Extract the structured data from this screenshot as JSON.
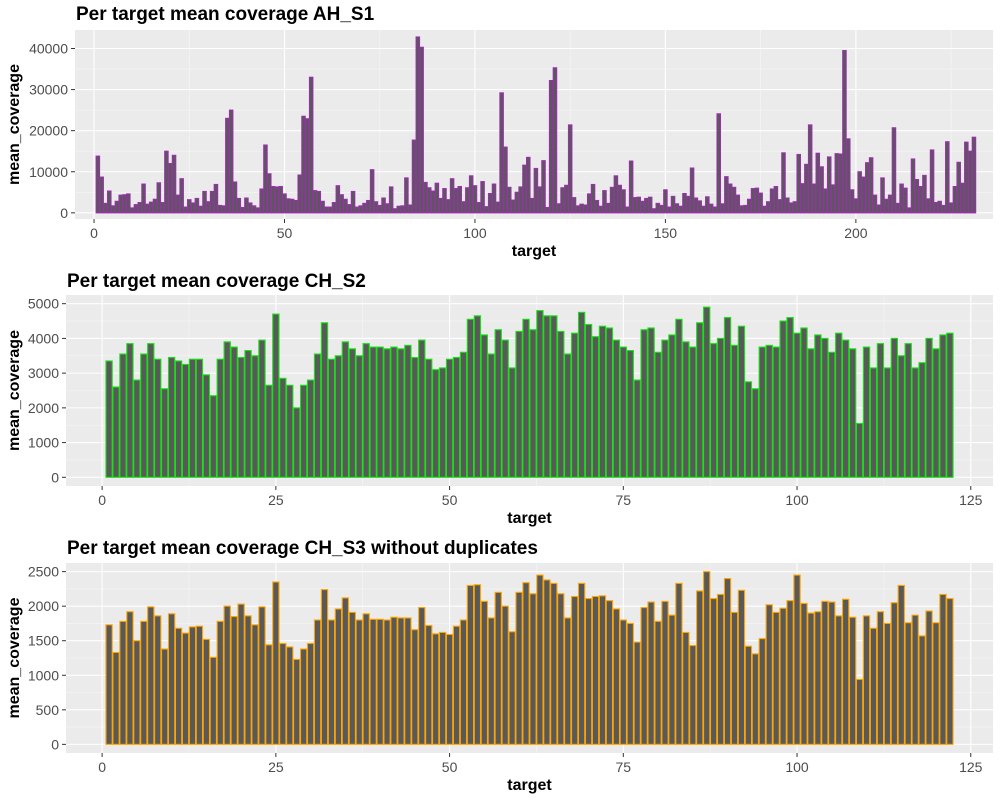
{
  "chart_data": [
    {
      "type": "bar",
      "title": "Per target mean coverage AH_S1",
      "xlabel": "target",
      "ylabel": "mean_coverage",
      "xlim": [
        -5,
        236
      ],
      "ylim": [
        -1500,
        44500
      ],
      "xticks": [
        0,
        50,
        100,
        150,
        200
      ],
      "yticks": [
        0,
        10000,
        20000,
        30000,
        40000
      ],
      "grid": true,
      "legend": "none",
      "colors": {
        "fill": "#595959",
        "outline": "#9b2fae"
      },
      "x_start": 1,
      "values": [
        13800,
        8700,
        2300,
        5300,
        1700,
        2800,
        4300,
        4400,
        4600,
        1200,
        2000,
        2500,
        7000,
        2100,
        2600,
        3300,
        7300,
        2500,
        15000,
        12000,
        14000,
        4300,
        8300,
        1400,
        3200,
        2400,
        3500,
        1600,
        5200,
        2700,
        5200,
        6900,
        1800,
        1700,
        23000,
        25000,
        7500,
        3500,
        1300,
        3600,
        2400,
        1700,
        1200,
        5800,
        16500,
        9500,
        6400,
        6300,
        6400,
        4600,
        3400,
        3300,
        3000,
        9200,
        23500,
        22900,
        33000,
        5400,
        5200,
        2800,
        1400,
        1400,
        2500,
        6600,
        4400,
        3300,
        2000,
        5200,
        1400,
        1700,
        2300,
        3000,
        10500,
        2700,
        1800,
        3600,
        2200,
        6300,
        1000,
        1600,
        1700,
        8500,
        1900,
        17700,
        42800,
        40300,
        7400,
        6100,
        5300,
        7200,
        3500,
        5900,
        3200,
        8300,
        5900,
        6400,
        2700,
        6100,
        9000,
        6600,
        2500,
        7600,
        1500,
        4700,
        7000,
        2600,
        29200,
        16000,
        6200,
        3100,
        5000,
        6300,
        11600,
        13500,
        3500,
        10800,
        6300,
        12700,
        1300,
        32200,
        35300,
        2200,
        6100,
        6700,
        21400,
        3700,
        1700,
        2100,
        1900,
        4600,
        6900,
        3000,
        1600,
        5400,
        2300,
        6200,
        9000,
        6700,
        5600,
        1400,
        12600,
        3700,
        3800,
        2800,
        3500,
        3800,
        1000,
        2300,
        1800,
        5600,
        1400,
        4000,
        2200,
        1600,
        4700,
        4000,
        10900,
        3600,
        2900,
        1600,
        3900,
        2100,
        1400,
        24100,
        2200,
        8800,
        7000,
        6200,
        4300,
        1700,
        1800,
        3300,
        5900,
        6000,
        4800,
        1600,
        2700,
        5800,
        6400,
        3200,
        14600,
        3600,
        2400,
        2700,
        14200,
        7100,
        11800,
        21400,
        7000,
        14500,
        11200,
        5800,
        13600,
        6800,
        14400,
        14300,
        39500,
        18000,
        5600,
        3400,
        10000,
        8700,
        12200,
        13400,
        4300,
        1900,
        8500,
        3300,
        4300,
        20700,
        2300,
        7000,
        6000,
        1200,
        13100,
        8100,
        6400,
        9100,
        3400,
        15300,
        2500,
        2800,
        1800,
        17300,
        2400,
        6400,
        12300,
        7200,
        17200,
        15000,
        18400
      ]
    },
    {
      "type": "bar",
      "title": "Per target mean coverage CH_S2",
      "xlabel": "target",
      "ylabel": "mean_coverage",
      "xlim": [
        -5.2,
        128.2
      ],
      "ylim": [
        -250,
        5250
      ],
      "xticks": [
        0,
        25,
        50,
        75,
        100,
        125
      ],
      "yticks": [
        0,
        1000,
        2000,
        3000,
        4000,
        5000
      ],
      "grid": true,
      "legend": "none",
      "colors": {
        "fill": "#595959",
        "outline": "#16e216"
      },
      "x_start": 1,
      "values": [
        3350,
        2600,
        3550,
        3850,
        2800,
        3550,
        3850,
        3400,
        2550,
        3450,
        3350,
        3250,
        3400,
        3400,
        2950,
        2350,
        3400,
        3900,
        3750,
        3450,
        3650,
        3500,
        3950,
        2650,
        4700,
        2850,
        2650,
        2000,
        2650,
        2800,
        3550,
        4450,
        3400,
        3500,
        3900,
        3700,
        3500,
        3850,
        3750,
        3750,
        3700,
        3750,
        3700,
        3800,
        3450,
        3950,
        3400,
        3100,
        3150,
        3400,
        3450,
        3600,
        4550,
        4650,
        4100,
        3550,
        4250,
        3950,
        3150,
        4200,
        4550,
        4250,
        4800,
        4650,
        4650,
        4200,
        3550,
        4150,
        4750,
        4400,
        4050,
        4350,
        4300,
        3950,
        3750,
        3650,
        2800,
        4250,
        4300,
        3600,
        3950,
        4100,
        4550,
        3900,
        3750,
        4450,
        4900,
        3850,
        4000,
        4600,
        3800,
        4350,
        2750,
        2550,
        3750,
        3800,
        3750,
        4500,
        4600,
        4150,
        4300,
        3700,
        4100,
        4000,
        3600,
        4150,
        3950,
        3700,
        1550,
        3750,
        3150,
        3850,
        3150,
        4000,
        3500,
        3850,
        3150,
        3300,
        4000,
        3700,
        4100,
        4150
      ]
    },
    {
      "type": "bar",
      "title": "Per target mean coverage CH_S3 without duplicates",
      "xlabel": "target",
      "ylabel": "mean_coverage",
      "xlim": [
        -5.2,
        128.2
      ],
      "ylim": [
        -125,
        2625
      ],
      "xticks": [
        0,
        25,
        50,
        75,
        100,
        125
      ],
      "yticks": [
        0,
        500,
        1000,
        1500,
        2000,
        2500
      ],
      "grid": true,
      "legend": "none",
      "colors": {
        "fill": "#595959",
        "outline": "#ffa500"
      },
      "x_start": 1,
      "values": [
        1730,
        1330,
        1780,
        1920,
        1500,
        1780,
        1990,
        1860,
        1380,
        1890,
        1680,
        1610,
        1700,
        1710,
        1520,
        1260,
        1780,
        2000,
        1850,
        2030,
        1860,
        1730,
        1990,
        1440,
        2350,
        1460,
        1410,
        1230,
        1380,
        1460,
        1800,
        2240,
        1800,
        1960,
        2120,
        1910,
        1800,
        1890,
        1810,
        1810,
        1800,
        1840,
        1830,
        1830,
        1660,
        1980,
        1720,
        1600,
        1620,
        1590,
        1710,
        1800,
        2300,
        2310,
        2070,
        1830,
        2200,
        2000,
        1630,
        2200,
        2340,
        2180,
        2450,
        2380,
        2330,
        2180,
        1830,
        2140,
        2330,
        2110,
        2140,
        2150,
        2080,
        1960,
        1800,
        1750,
        1480,
        1980,
        2060,
        1780,
        2070,
        1870,
        2330,
        1620,
        1430,
        2220,
        2500,
        2110,
        2170,
        2400,
        1910,
        2230,
        1420,
        1310,
        1530,
        2020,
        1910,
        1970,
        2080,
        2450,
        2040,
        1900,
        1920,
        2070,
        2060,
        1860,
        2100,
        1840,
        940,
        1860,
        1680,
        1920,
        1750,
        2050,
        2300,
        1760,
        1870,
        1570,
        1930,
        1760,
        2170,
        2110
      ]
    }
  ]
}
